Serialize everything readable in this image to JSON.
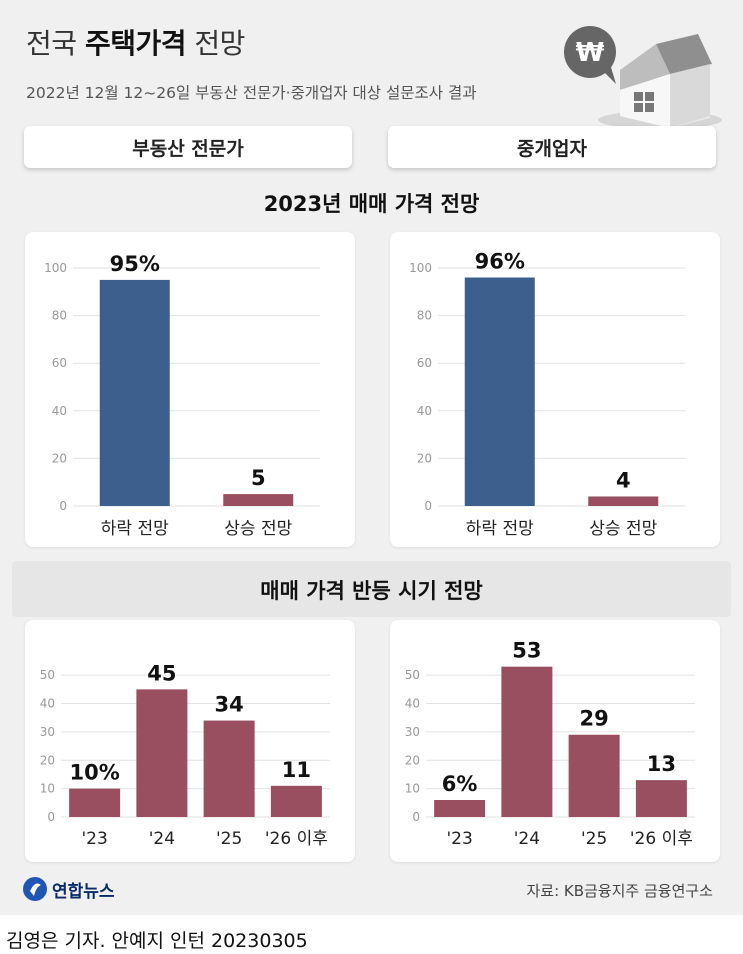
{
  "header": {
    "title_light": "전국",
    "title_bold": "주택가격",
    "title_end": "전망",
    "subtitle": "2022년 12월 12~26일 부동산 전문가·중개업자 대상 설문조사 결과",
    "currency_symbol": "₩"
  },
  "groups": {
    "left": "부동산 전문가",
    "right": "중개업자"
  },
  "sections": {
    "top": "2023년 매매 가격 전망",
    "bottom": "매매 가격 반등 시기 전망"
  },
  "colors": {
    "blue_bar": "#3c5f8e",
    "red_bar": "#9a4f60",
    "axis_text": "#999999",
    "gridline": "#e2e2e2"
  },
  "chart_data": [
    {
      "type": "bar",
      "group": "부동산 전문가",
      "categories": [
        "하락 전망",
        "상승 전망"
      ],
      "values": [
        95,
        5
      ],
      "value_labels": [
        "95%",
        "5"
      ],
      "bar_colors": [
        "#3c5f8e",
        "#9a4f60"
      ],
      "ylim": [
        0,
        100
      ],
      "yticks": [
        0,
        20,
        40,
        60,
        80,
        100
      ]
    },
    {
      "type": "bar",
      "group": "중개업자",
      "categories": [
        "하락 전망",
        "상승 전망"
      ],
      "values": [
        96,
        4
      ],
      "value_labels": [
        "96%",
        "4"
      ],
      "bar_colors": [
        "#3c5f8e",
        "#9a4f60"
      ],
      "ylim": [
        0,
        100
      ],
      "yticks": [
        0,
        20,
        40,
        60,
        80,
        100
      ]
    },
    {
      "type": "bar",
      "group": "부동산 전문가",
      "categories": [
        "'23",
        "'24",
        "'25",
        "'26 이후"
      ],
      "values": [
        10,
        45,
        34,
        11
      ],
      "value_labels": [
        "10%",
        "45",
        "34",
        "11"
      ],
      "bar_colors": [
        "#9a4f60",
        "#9a4f60",
        "#9a4f60",
        "#9a4f60"
      ],
      "ylim": [
        0,
        55
      ],
      "yticks": [
        0,
        10,
        20,
        30,
        40,
        50
      ]
    },
    {
      "type": "bar",
      "group": "중개업자",
      "categories": [
        "'23",
        "'24",
        "'25",
        "'26 이후"
      ],
      "values": [
        6,
        53,
        29,
        13
      ],
      "value_labels": [
        "6%",
        "53",
        "29",
        "13"
      ],
      "bar_colors": [
        "#9a4f60",
        "#9a4f60",
        "#9a4f60",
        "#9a4f60"
      ],
      "ylim": [
        0,
        55
      ],
      "yticks": [
        0,
        10,
        20,
        30,
        40,
        50
      ]
    }
  ],
  "footer": {
    "logo_text": "연합뉴스",
    "source": "자료: KB금융지주 금융연구소",
    "credit": "김영은 기자. 안예지 인턴  20230305"
  }
}
